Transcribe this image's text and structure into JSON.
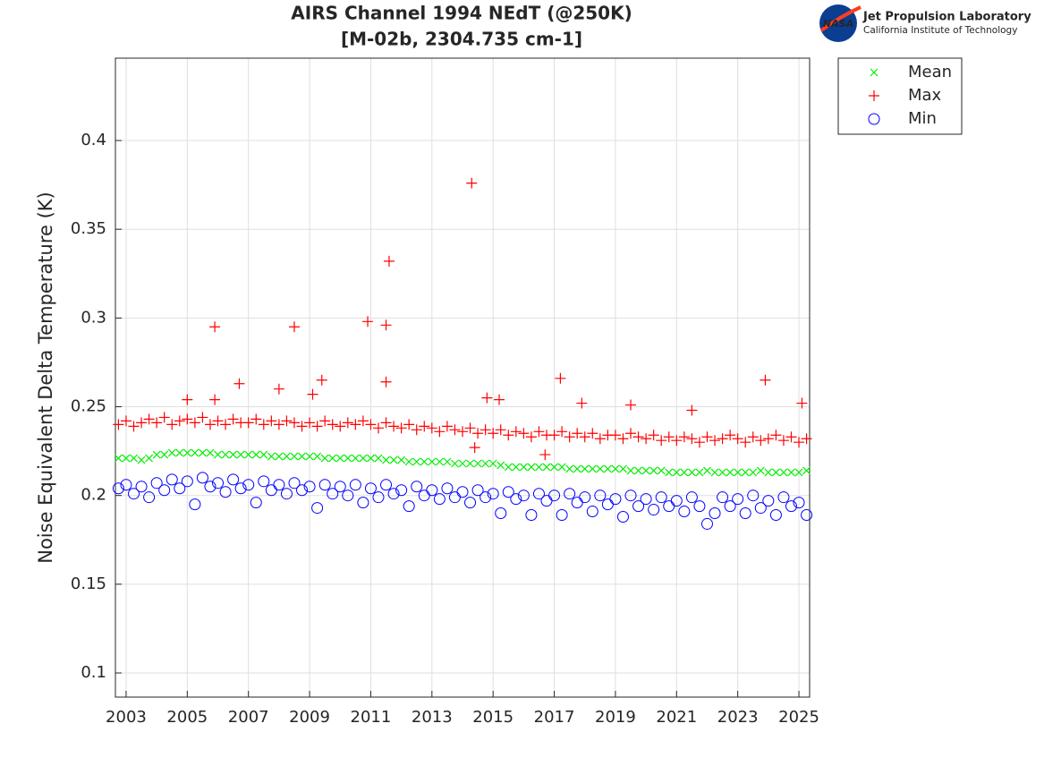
{
  "header": {
    "logo_text": "NASA",
    "organization": "Jet Propulsion Laboratory",
    "institution": "California Institute of Technology"
  },
  "chart_data": {
    "type": "scatter",
    "title": "AIRS Channel 1994 NEdT (@250K)",
    "subtitle": "[M-02b, 2304.735 cm-1]",
    "y_label": "Noise Equivalent Delta Temperature (K)",
    "xlim": [
      2002.65,
      2025.35
    ],
    "xticks": [
      2003,
      2005,
      2007,
      2009,
      2011,
      2013,
      2015,
      2017,
      2019,
      2021,
      2023,
      2025
    ],
    "ylim": [
      0.0864,
      0.4464
    ],
    "yticks": [
      0.1,
      0.15,
      0.2,
      0.25,
      0.3,
      0.35,
      0.4
    ],
    "grid": true,
    "legend": "outside-upper-right",
    "series": [
      {
        "name": "Mean",
        "color": "#00ee00",
        "marker": "x",
        "x": [
          2002.75,
          2003,
          2003.25,
          2003.5,
          2003.75,
          2004,
          2004.25,
          2004.5,
          2004.75,
          2005,
          2005.25,
          2005.5,
          2005.75,
          2006,
          2006.25,
          2006.5,
          2006.75,
          2007,
          2007.25,
          2007.5,
          2007.75,
          2008,
          2008.25,
          2008.5,
          2008.75,
          2009,
          2009.25,
          2009.5,
          2009.75,
          2010,
          2010.25,
          2010.5,
          2010.75,
          2011,
          2011.25,
          2011.5,
          2011.75,
          2012,
          2012.25,
          2012.5,
          2012.75,
          2013,
          2013.25,
          2013.5,
          2013.75,
          2014,
          2014.25,
          2014.5,
          2014.75,
          2015,
          2015.25,
          2015.5,
          2015.75,
          2016,
          2016.25,
          2016.5,
          2016.75,
          2017,
          2017.25,
          2017.5,
          2017.75,
          2018,
          2018.25,
          2018.5,
          2018.75,
          2019,
          2019.25,
          2019.5,
          2019.75,
          2020,
          2020.25,
          2020.5,
          2020.75,
          2021,
          2021.25,
          2021.5,
          2021.75,
          2022,
          2022.25,
          2022.5,
          2022.75,
          2023,
          2023.25,
          2023.5,
          2023.75,
          2024,
          2024.25,
          2024.5,
          2024.75,
          2025,
          2025.25
        ],
        "values": [
          0.221,
          0.221,
          0.221,
          0.22,
          0.221,
          0.223,
          0.223,
          0.224,
          0.224,
          0.224,
          0.224,
          0.224,
          0.224,
          0.223,
          0.223,
          0.223,
          0.223,
          0.223,
          0.223,
          0.223,
          0.222,
          0.222,
          0.222,
          0.222,
          0.222,
          0.222,
          0.222,
          0.221,
          0.221,
          0.221,
          0.221,
          0.221,
          0.221,
          0.221,
          0.221,
          0.22,
          0.22,
          0.22,
          0.219,
          0.219,
          0.219,
          0.219,
          0.219,
          0.219,
          0.218,
          0.218,
          0.218,
          0.218,
          0.218,
          0.218,
          0.217,
          0.216,
          0.216,
          0.216,
          0.216,
          0.216,
          0.216,
          0.216,
          0.216,
          0.215,
          0.215,
          0.215,
          0.215,
          0.215,
          0.215,
          0.215,
          0.215,
          0.214,
          0.214,
          0.214,
          0.214,
          0.214,
          0.213,
          0.213,
          0.213,
          0.213,
          0.213,
          0.214,
          0.213,
          0.213,
          0.213,
          0.213,
          0.213,
          0.213,
          0.214,
          0.213,
          0.213,
          0.213,
          0.213,
          0.213,
          0.214
        ]
      },
      {
        "name": "Max",
        "color": "#ff0000",
        "marker": "+",
        "x": [
          2002.75,
          2003,
          2003.25,
          2003.5,
          2003.75,
          2004,
          2004.25,
          2004.5,
          2004.75,
          2005,
          2005.25,
          2005.5,
          2005.75,
          2006,
          2006.25,
          2006.5,
          2006.75,
          2007,
          2007.25,
          2007.5,
          2007.75,
          2008,
          2008.25,
          2008.5,
          2008.75,
          2009,
          2009.25,
          2009.5,
          2009.75,
          2010,
          2010.25,
          2010.5,
          2010.75,
          2011,
          2011.25,
          2011.5,
          2011.75,
          2012,
          2012.25,
          2012.5,
          2012.75,
          2013,
          2013.25,
          2013.5,
          2013.75,
          2014,
          2014.25,
          2014.5,
          2014.75,
          2015,
          2015.25,
          2015.5,
          2015.75,
          2016,
          2016.25,
          2016.5,
          2016.75,
          2017,
          2017.25,
          2017.5,
          2017.75,
          2018,
          2018.25,
          2018.5,
          2018.75,
          2019,
          2019.25,
          2019.5,
          2019.75,
          2020,
          2020.25,
          2020.5,
          2020.75,
          2021,
          2021.25,
          2021.5,
          2021.75,
          2022,
          2022.25,
          2022.5,
          2022.75,
          2023,
          2023.25,
          2023.5,
          2023.75,
          2024,
          2024.25,
          2024.5,
          2024.75,
          2025,
          2025.25,
          2005.9,
          2008.5,
          2010.9,
          2011.5,
          2011.6,
          2014.3,
          2011.5,
          2017.2,
          2023.9,
          2009.4,
          2006.7,
          2008.0,
          2009.1,
          2014.8,
          2015.2,
          2005.0,
          2005.9,
          2017.9,
          2019.5,
          2025.1,
          2021.5,
          2016.7,
          2014.4
        ],
        "values": [
          0.24,
          0.242,
          0.239,
          0.241,
          0.243,
          0.241,
          0.244,
          0.24,
          0.242,
          0.243,
          0.241,
          0.244,
          0.24,
          0.242,
          0.24,
          0.243,
          0.241,
          0.241,
          0.243,
          0.24,
          0.242,
          0.24,
          0.242,
          0.241,
          0.239,
          0.241,
          0.239,
          0.242,
          0.24,
          0.239,
          0.241,
          0.24,
          0.242,
          0.24,
          0.238,
          0.241,
          0.239,
          0.238,
          0.24,
          0.237,
          0.239,
          0.238,
          0.236,
          0.239,
          0.237,
          0.236,
          0.238,
          0.235,
          0.237,
          0.235,
          0.237,
          0.234,
          0.236,
          0.235,
          0.233,
          0.236,
          0.234,
          0.234,
          0.236,
          0.233,
          0.235,
          0.233,
          0.235,
          0.232,
          0.234,
          0.234,
          0.232,
          0.235,
          0.233,
          0.232,
          0.234,
          0.231,
          0.233,
          0.231,
          0.233,
          0.232,
          0.23,
          0.233,
          0.231,
          0.232,
          0.234,
          0.232,
          0.23,
          0.233,
          0.231,
          0.232,
          0.234,
          0.231,
          0.233,
          0.23,
          0.232,
          0.295,
          0.295,
          0.298,
          0.296,
          0.332,
          0.376,
          0.264,
          0.266,
          0.265,
          0.265,
          0.263,
          0.26,
          0.257,
          0.255,
          0.254,
          0.254,
          0.254,
          0.252,
          0.251,
          0.252,
          0.248,
          0.223,
          0.227
        ]
      },
      {
        "name": "Min",
        "color": "#0000ff",
        "marker": "o",
        "x": [
          2002.75,
          2003,
          2003.25,
          2003.5,
          2003.75,
          2004,
          2004.25,
          2004.5,
          2004.75,
          2005,
          2005.25,
          2005.5,
          2005.75,
          2006,
          2006.25,
          2006.5,
          2006.75,
          2007,
          2007.25,
          2007.5,
          2007.75,
          2008,
          2008.25,
          2008.5,
          2008.75,
          2009,
          2009.25,
          2009.5,
          2009.75,
          2010,
          2010.25,
          2010.5,
          2010.75,
          2011,
          2011.25,
          2011.5,
          2011.75,
          2012,
          2012.25,
          2012.5,
          2012.75,
          2013,
          2013.25,
          2013.5,
          2013.75,
          2014,
          2014.25,
          2014.5,
          2014.75,
          2015,
          2015.25,
          2015.5,
          2015.75,
          2016,
          2016.25,
          2016.5,
          2016.75,
          2017,
          2017.25,
          2017.5,
          2017.75,
          2018,
          2018.25,
          2018.5,
          2018.75,
          2019,
          2019.25,
          2019.5,
          2019.75,
          2020,
          2020.25,
          2020.5,
          2020.75,
          2021,
          2021.25,
          2021.5,
          2021.75,
          2022,
          2022.25,
          2022.5,
          2022.75,
          2023,
          2023.25,
          2023.5,
          2023.75,
          2024,
          2024.25,
          2024.5,
          2024.75,
          2025,
          2025.25
        ],
        "values": [
          0.204,
          0.206,
          0.201,
          0.205,
          0.199,
          0.207,
          0.203,
          0.209,
          0.204,
          0.208,
          0.195,
          0.21,
          0.205,
          0.207,
          0.202,
          0.209,
          0.204,
          0.206,
          0.196,
          0.208,
          0.203,
          0.206,
          0.201,
          0.207,
          0.203,
          0.205,
          0.193,
          0.206,
          0.201,
          0.205,
          0.2,
          0.206,
          0.196,
          0.204,
          0.199,
          0.206,
          0.201,
          0.203,
          0.194,
          0.205,
          0.2,
          0.203,
          0.198,
          0.204,
          0.199,
          0.202,
          0.196,
          0.203,
          0.199,
          0.201,
          0.19,
          0.202,
          0.198,
          0.2,
          0.189,
          0.201,
          0.197,
          0.2,
          0.189,
          0.201,
          0.196,
          0.199,
          0.191,
          0.2,
          0.195,
          0.198,
          0.188,
          0.2,
          0.194,
          0.198,
          0.192,
          0.199,
          0.194,
          0.197,
          0.191,
          0.199,
          0.194,
          0.184,
          0.19,
          0.199,
          0.194,
          0.198,
          0.19,
          0.2,
          0.193,
          0.197,
          0.189,
          0.199,
          0.194,
          0.196,
          0.189
        ]
      }
    ]
  }
}
